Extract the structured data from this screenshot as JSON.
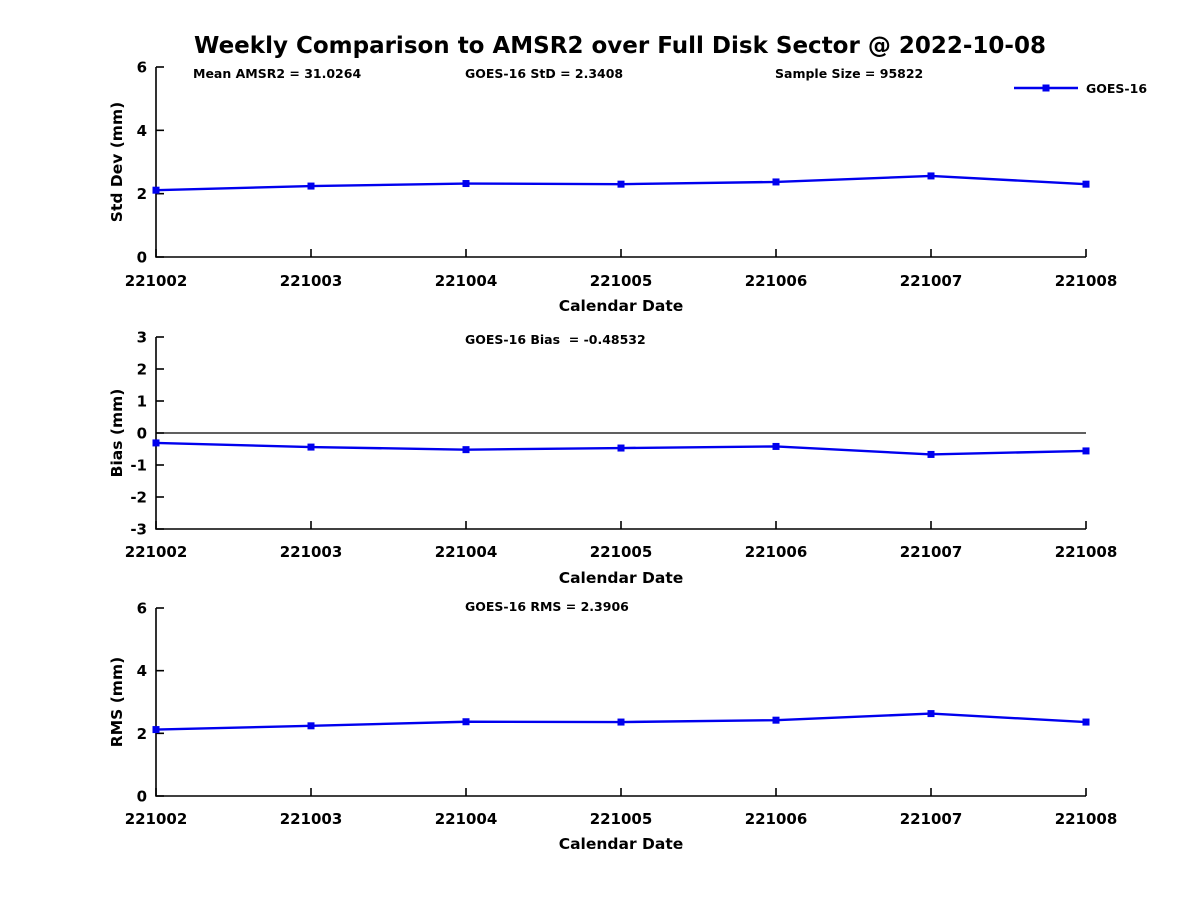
{
  "figure": {
    "title": "Weekly Comparison to AMSR2 over Full Disk Sector @ 2022-10-08"
  },
  "legend": {
    "label": "GOES-16",
    "position": "top-right",
    "line_color": "#0000EE"
  },
  "colors": {
    "series_blue": "#0000EE",
    "axis_black": "#000000"
  },
  "chart_data": [
    {
      "type": "line",
      "title": "",
      "xlabel": "Calendar Date",
      "ylabel": "Std Dev (mm)",
      "categories": [
        "221002",
        "221003",
        "221004",
        "221005",
        "221006",
        "221007",
        "221008"
      ],
      "series": [
        {
          "name": "GOES-16",
          "values": [
            2.11,
            2.24,
            2.32,
            2.3,
            2.37,
            2.56,
            2.3
          ]
        }
      ],
      "ylim": [
        0,
        6
      ],
      "yticks": [
        0,
        2,
        4,
        6
      ],
      "grid": false,
      "zero_line": false,
      "legend_entries": [
        "GOES-16"
      ],
      "annotations": [
        "Mean AMSR2 = 31.0264",
        "GOES-16 StD = 2.3408",
        "Sample Size = 95822"
      ]
    },
    {
      "type": "line",
      "title": "",
      "xlabel": "Calendar Date",
      "ylabel": "Bias (mm)",
      "categories": [
        "221002",
        "221003",
        "221004",
        "221005",
        "221006",
        "221007",
        "221008"
      ],
      "series": [
        {
          "name": "GOES-16",
          "values": [
            -0.31,
            -0.44,
            -0.52,
            -0.47,
            -0.42,
            -0.67,
            -0.56
          ]
        }
      ],
      "ylim": [
        -3,
        3
      ],
      "yticks": [
        -3,
        -2,
        -1,
        0,
        1,
        2,
        3
      ],
      "grid": false,
      "zero_line": true,
      "legend_entries": [],
      "annotations": [
        "GOES-16 Bias  = -0.48532"
      ]
    },
    {
      "type": "line",
      "title": "",
      "xlabel": "Calendar Date",
      "ylabel": "RMS (mm)",
      "categories": [
        "221002",
        "221003",
        "221004",
        "221005",
        "221006",
        "221007",
        "221008"
      ],
      "series": [
        {
          "name": "GOES-16",
          "values": [
            2.12,
            2.24,
            2.37,
            2.36,
            2.42,
            2.63,
            2.36
          ]
        }
      ],
      "ylim": [
        0,
        6
      ],
      "yticks": [
        0,
        2,
        4,
        6
      ],
      "grid": false,
      "zero_line": false,
      "legend_entries": [],
      "annotations": [
        "GOES-16 RMS = 2.3906"
      ]
    }
  ]
}
